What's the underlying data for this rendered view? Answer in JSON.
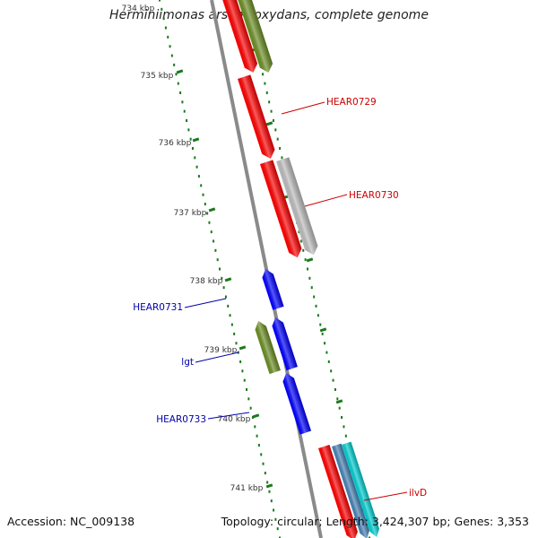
{
  "title": "Herminiimonas arsenicoxydans, complete genome",
  "footer": {
    "accession": "Accession: NC_009138",
    "summary": "Topology: circular; Length: 3,424,307 bp; Genes: 3,353"
  },
  "ticks": [
    "734 kbp",
    "735 kbp",
    "736 kbp",
    "737 kbp",
    "738 kbp",
    "739 kbp",
    "740 kbp",
    "741 kbp"
  ],
  "genes": [
    {
      "id": "g-top-red",
      "label": "",
      "color": "#ff0000",
      "strand": "+"
    },
    {
      "id": "g-top-olive",
      "label": "",
      "color": "#6b8e23",
      "strand": "+"
    },
    {
      "id": "g-0729",
      "label": "HEAR0729",
      "color": "#ff0000",
      "strand": "+",
      "label_color": "#cc0000"
    },
    {
      "id": "g-0730a",
      "label": "HEAR0730",
      "color": "#ff0000",
      "strand": "+",
      "label_color": "#cc0000"
    },
    {
      "id": "g-0730b",
      "label": "",
      "color": "#bdbdbd",
      "strand": "+"
    },
    {
      "id": "g-0731",
      "label": "HEAR0731",
      "color": "#0000ff",
      "strand": "-",
      "label_color": "#0000aa"
    },
    {
      "id": "g-lgt-olive",
      "label": "",
      "color": "#6b8e23",
      "strand": "-"
    },
    {
      "id": "g-lgt",
      "label": "lgt",
      "color": "#0000ff",
      "strand": "-",
      "label_color": "#0000aa"
    },
    {
      "id": "g-0733",
      "label": "HEAR0733",
      "color": "#0000ff",
      "strand": "-",
      "label_color": "#0000aa"
    },
    {
      "id": "g-ilvD-red",
      "label": "",
      "color": "#ff0000",
      "strand": "+"
    },
    {
      "id": "g-ilvD-steel",
      "label": "",
      "color": "#4682b4",
      "strand": "+"
    },
    {
      "id": "g-ilvD",
      "label": "ilvD",
      "color": "#00ced1",
      "strand": "+",
      "label_color": "#cc0000"
    }
  ],
  "colors": {
    "backbone": "#8a8a8a",
    "tick_dots": "#1a7a1a",
    "plus_label": "#cc0000",
    "minus_label": "#0000aa"
  }
}
